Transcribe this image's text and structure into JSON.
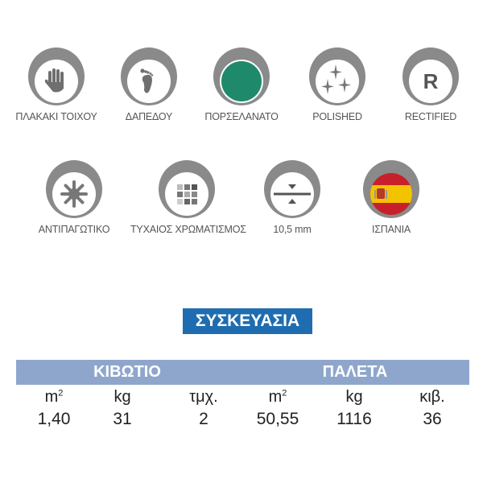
{
  "features_row1": [
    {
      "icon": "hand-icon",
      "label": "ΠΛΑΚΑΚΙ ΤΟΙΧΟΥ"
    },
    {
      "icon": "foot-icon",
      "label": "ΔΑΠΕΔΟΥ"
    },
    {
      "icon": "green-circle-icon",
      "label": "ΠΟΡΣΕΛΑΝΑΤΟ"
    },
    {
      "icon": "sparkles-icon",
      "label": "POLISHED"
    },
    {
      "icon": "r-letter-icon",
      "label": "RECTIFIED",
      "glyph": "R"
    }
  ],
  "features_row2": [
    {
      "icon": "snowflake-icon",
      "label": "ΑΝΤΙΠΑΓΩΤΙΚΟ"
    },
    {
      "icon": "color-grid-icon",
      "label": "ΤΥΧΑΙΟΣ ΧΡΩΜΑΤΙΣΜΟΣ"
    },
    {
      "icon": "thickness-icon",
      "label": "10,5 mm"
    },
    {
      "icon": "spain-flag-icon",
      "label": "ΙΣΠΑΝΙΑ"
    }
  ],
  "colors": {
    "ring": "#8a8a8a",
    "green": "#1e8a6b",
    "title_bg": "#1f6db0",
    "bar_bg": "#8fa6cc",
    "flag_red": "#c8202a",
    "flag_yellow": "#f4c300"
  },
  "packaging": {
    "title": "ΣΥΣΚΕΥΑΣΙΑ",
    "groups": [
      "ΚΙΒΩΤΙΟ",
      "ΠΑΛΕΤΑ"
    ],
    "columns": [
      {
        "unit": "m",
        "sup": "2",
        "value": "1,40"
      },
      {
        "unit": "kg",
        "sup": "",
        "value": "31"
      },
      {
        "unit": "τμχ.",
        "sup": "",
        "value": "2"
      },
      {
        "unit": "m",
        "sup": "2",
        "value": "50,55"
      },
      {
        "unit": "kg",
        "sup": "",
        "value": "1116"
      },
      {
        "unit": "κιβ.",
        "sup": "",
        "value": "36"
      }
    ]
  }
}
